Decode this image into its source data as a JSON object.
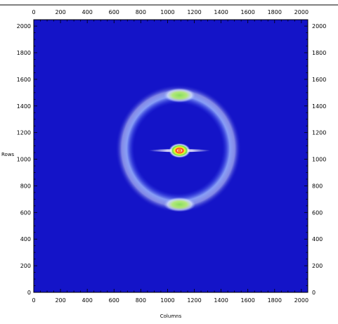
{
  "chart_data": {
    "type": "heatmap",
    "title": "",
    "xlabel": "Columns",
    "ylabel": "Rows",
    "xlim": [
      0,
      2048
    ],
    "ylim": [
      0,
      2048
    ],
    "x_ticks": [
      0,
      200,
      400,
      600,
      800,
      1000,
      1200,
      1400,
      1600,
      1800,
      2000
    ],
    "y_ticks": [
      0,
      200,
      400,
      600,
      800,
      1000,
      1200,
      1400,
      1600,
      1800,
      2000
    ],
    "x_tick_labels": [
      "0",
      "200",
      "400",
      "600",
      "800",
      "1000",
      "1200",
      "1400",
      "1600",
      "1800",
      "2000"
    ],
    "y_tick_labels": [
      "0",
      "200",
      "400",
      "600",
      "800",
      "1000",
      "1200",
      "1400",
      "1600",
      "1800",
      "2000"
    ],
    "tick_label_sides": [
      "left",
      "right",
      "top",
      "bottom"
    ],
    "grid": false,
    "colormap": [
      "#1010c8",
      "#3a5af0",
      "#8fb0ff",
      "#ffffff",
      "#7fe05a",
      "#f2ff2a",
      "#ff3a2a",
      "#ffffff"
    ],
    "background_level_color": "#1414c8",
    "features": {
      "beam_center": [
        1090,
        1065
      ],
      "central_spot": {
        "x": 1090,
        "y": 1065,
        "half_width": 80,
        "half_height": 55,
        "intensity": "max"
      },
      "equatorial_streak": {
        "y": 1065,
        "x_range": [
          860,
          1320
        ],
        "intensity": "medium"
      },
      "outer_ring": {
        "center": [
          1080,
          1080
        ],
        "radius_x": 470,
        "radius_y": 480,
        "intensity": "low"
      },
      "upper_lobe": {
        "x": 1090,
        "y": 1480,
        "width": 240,
        "height": 110,
        "intensity": "medium-high"
      },
      "lower_lobe": {
        "x": 1090,
        "y": 660,
        "width": 240,
        "height": 110,
        "intensity": "medium-high"
      }
    }
  }
}
